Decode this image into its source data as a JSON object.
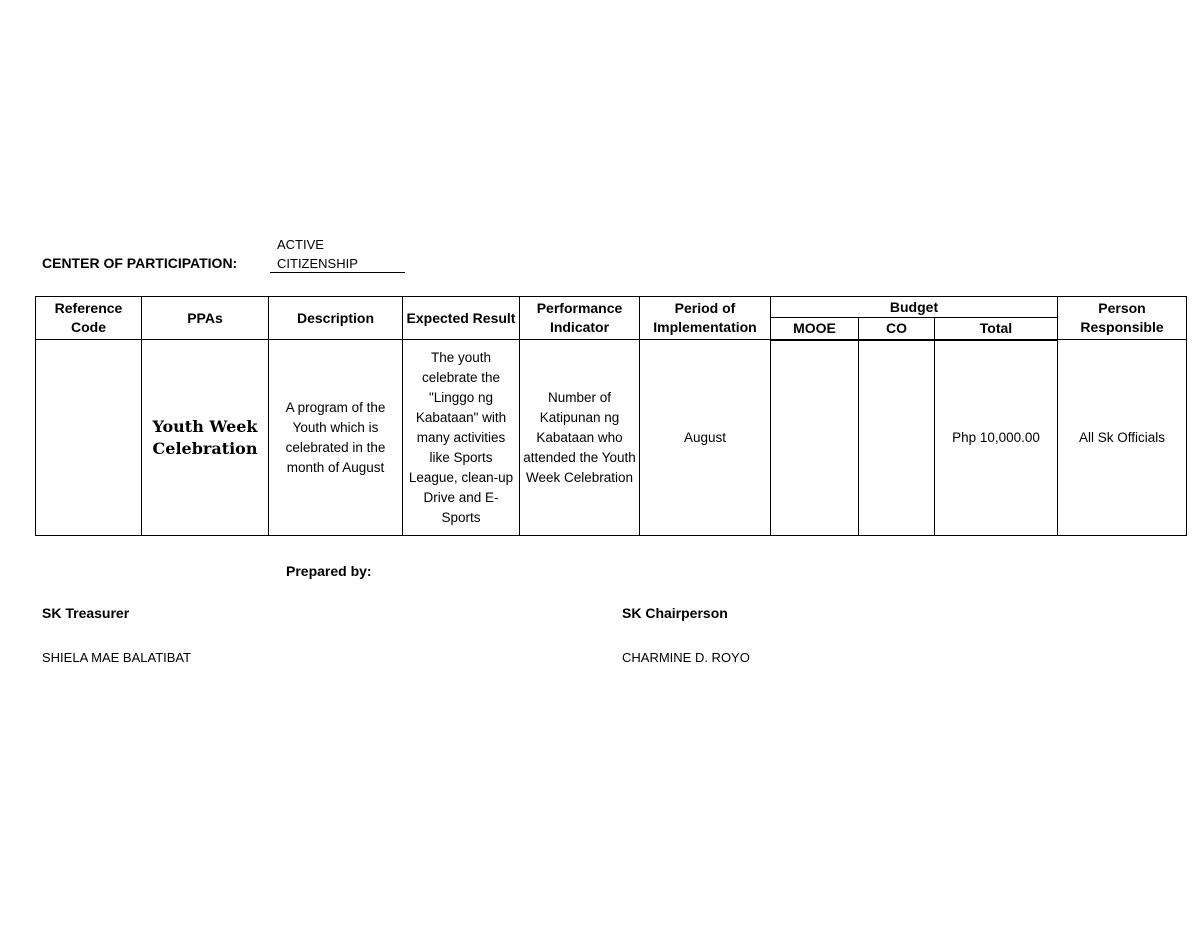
{
  "header": {
    "center_label": "CENTER OF PARTICIPATION:",
    "center_value_line1": "ACTIVE",
    "center_value_line2": "CITIZENSHIP"
  },
  "table": {
    "columns": {
      "ref": "Reference Code",
      "ppas": "PPAs",
      "desc": "Description",
      "expected": "Expected Result",
      "indicator": "Performance Indicator",
      "period": "Period of Implementation",
      "budget": "Budget",
      "mooe": "MOOE",
      "co": "CO",
      "total": "Total",
      "person": "Person Responsible"
    },
    "rows": [
      {
        "ref": "",
        "ppas": "Youth Week Celebration",
        "desc": "A program of the Youth which is celebrated in the month of August",
        "expected": "The youth celebrate the \"Linggo ng Kabataan\" with many activities like Sports League, clean-up Drive and E-Sports",
        "indicator": "Number of Katipunan ng Kabataan who attended the Youth Week Celebration",
        "period": "August",
        "mooe": "",
        "co": "",
        "total": "Php 10,000.00",
        "person": "All Sk Officials"
      }
    ]
  },
  "footer": {
    "prepared_by": "Prepared by:",
    "treasurer_title": "SK Treasurer",
    "treasurer_name": "SHIELA MAE BALATIBAT",
    "chair_title": "SK Chairperson",
    "chair_name": "CHARMINE D. ROYO"
  }
}
